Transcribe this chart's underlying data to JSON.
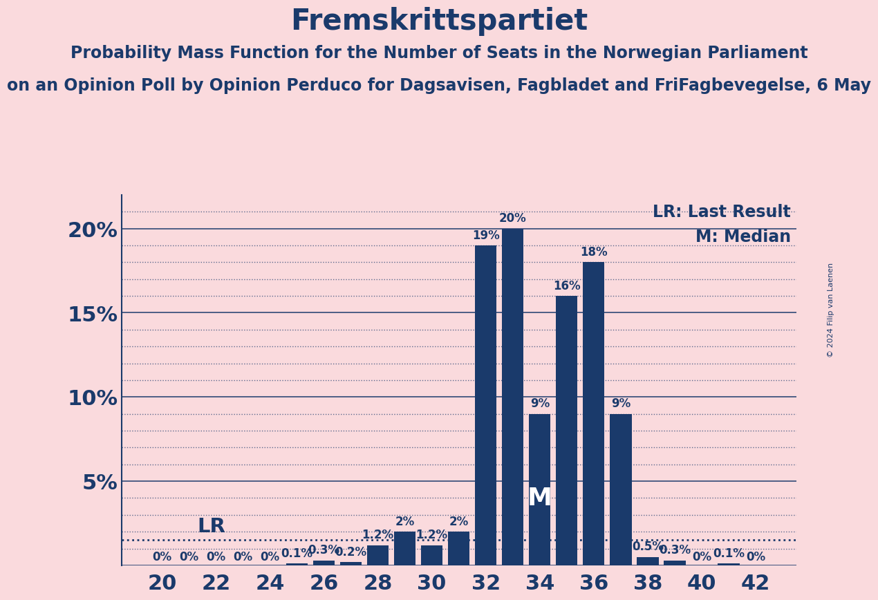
{
  "title": "Fremskrittspartiet",
  "subtitle1": "Probability Mass Function for the Number of Seats in the Norwegian Parliament",
  "subtitle2": "on an Opinion Poll by Opinion Perduco for Dagsavisen, Fagbladet and FriFagbevegelse, 6 May",
  "copyright": "© 2024 Filip van Laenen",
  "background_color": "#fadadd",
  "bar_color": "#1a3a6b",
  "text_color": "#1a3a6b",
  "seats": [
    20,
    21,
    22,
    23,
    24,
    25,
    26,
    27,
    28,
    29,
    30,
    31,
    32,
    33,
    34,
    35,
    36,
    37,
    38,
    39,
    40,
    41,
    42
  ],
  "values": [
    0.0,
    0.0,
    0.0,
    0.0,
    0.0,
    0.1,
    0.3,
    0.2,
    1.2,
    2.0,
    1.2,
    2.0,
    19.0,
    20.0,
    9.0,
    16.0,
    18.0,
    9.0,
    0.5,
    0.3,
    0.0,
    0.1,
    0.0
  ],
  "labels": [
    "0%",
    "0%",
    "0%",
    "0%",
    "0%",
    "0.1%",
    "0.3%",
    "0.2%",
    "1.2%",
    "2%",
    "1.2%",
    "2%",
    "19%",
    "20%",
    "9%",
    "16%",
    "18%",
    "9%",
    "0.5%",
    "0.3%",
    "0%",
    "0.1%",
    "0%"
  ],
  "xtick_positions": [
    20,
    22,
    24,
    26,
    28,
    30,
    32,
    34,
    36,
    38,
    40,
    42
  ],
  "yticks": [
    5,
    10,
    15,
    20
  ],
  "ylim": [
    0,
    22.0
  ],
  "lr_seat": 21,
  "median_seat": 34,
  "lr_label": "LR",
  "median_label": "M",
  "legend_lr": "LR: Last Result",
  "legend_m": "M: Median",
  "grid_color": "#1a3a6b",
  "title_fontsize": 30,
  "subtitle_fontsize": 17,
  "axis_fontsize": 22,
  "bar_label_fontsize": 12,
  "legend_fontsize": 17,
  "lr_line_value": 1.5
}
